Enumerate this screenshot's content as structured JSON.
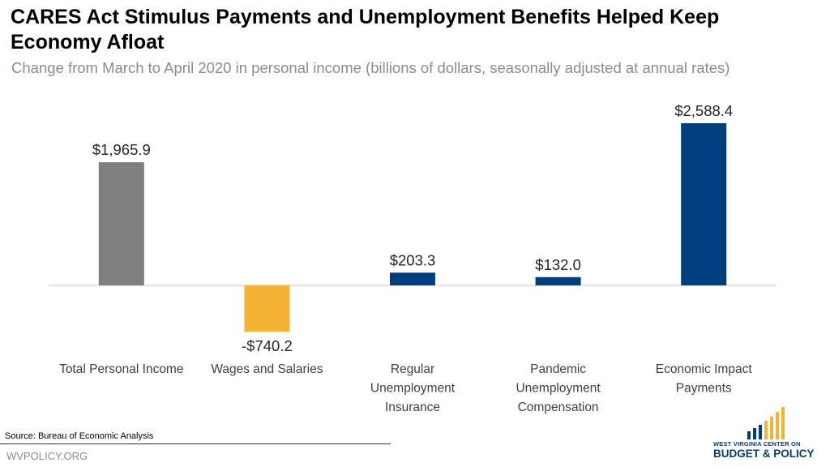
{
  "header": {
    "title": "CARES Act Stimulus Payments and Unemployment Benefits Helped Keep Economy Afloat",
    "subtitle": "Change from March to April 2020 in personal income (billions of dollars, seasonally adjusted at annual rates)"
  },
  "chart_data": {
    "type": "bar",
    "categories": [
      "Total Personal Income",
      "Wages and Salaries",
      "Regular Unemployment Insurance",
      "Pandemic Unemployment Compensation",
      "Economic Impact Payments"
    ],
    "category_lines": [
      [
        "Total Personal Income"
      ],
      [
        "Wages and Salaries"
      ],
      [
        "Regular",
        "Unemployment",
        "Insurance"
      ],
      [
        "Pandemic",
        "Unemployment",
        "Compensation"
      ],
      [
        "Economic Impact",
        "Payments"
      ]
    ],
    "values": [
      1965.9,
      -740.2,
      203.3,
      132.0,
      2588.4
    ],
    "value_labels": [
      "$1,965.9",
      "-$740.2",
      "$203.3",
      "$132.0",
      "$2,588.4"
    ],
    "colors": [
      "#7f7f7f",
      "#f5b335",
      "#003f7f",
      "#003f7f",
      "#003f7f"
    ],
    "title": "CARES Act Stimulus Payments and Unemployment Benefits Helped Keep Economy Afloat",
    "xlabel": "",
    "ylabel": "",
    "grid": false,
    "legend": "none"
  },
  "footer": {
    "source": "Source: Bureau of Economic Analysis",
    "site": "WVPOLICY.ORG",
    "logo_line1": "WEST VIRGINIA CENTER ON",
    "logo_line2": "BUDGET & POLICY"
  },
  "colors": {
    "total": "#7f7f7f",
    "negative": "#f5b335",
    "brand": "#003f7f",
    "logo_gold": "#f5b335"
  }
}
